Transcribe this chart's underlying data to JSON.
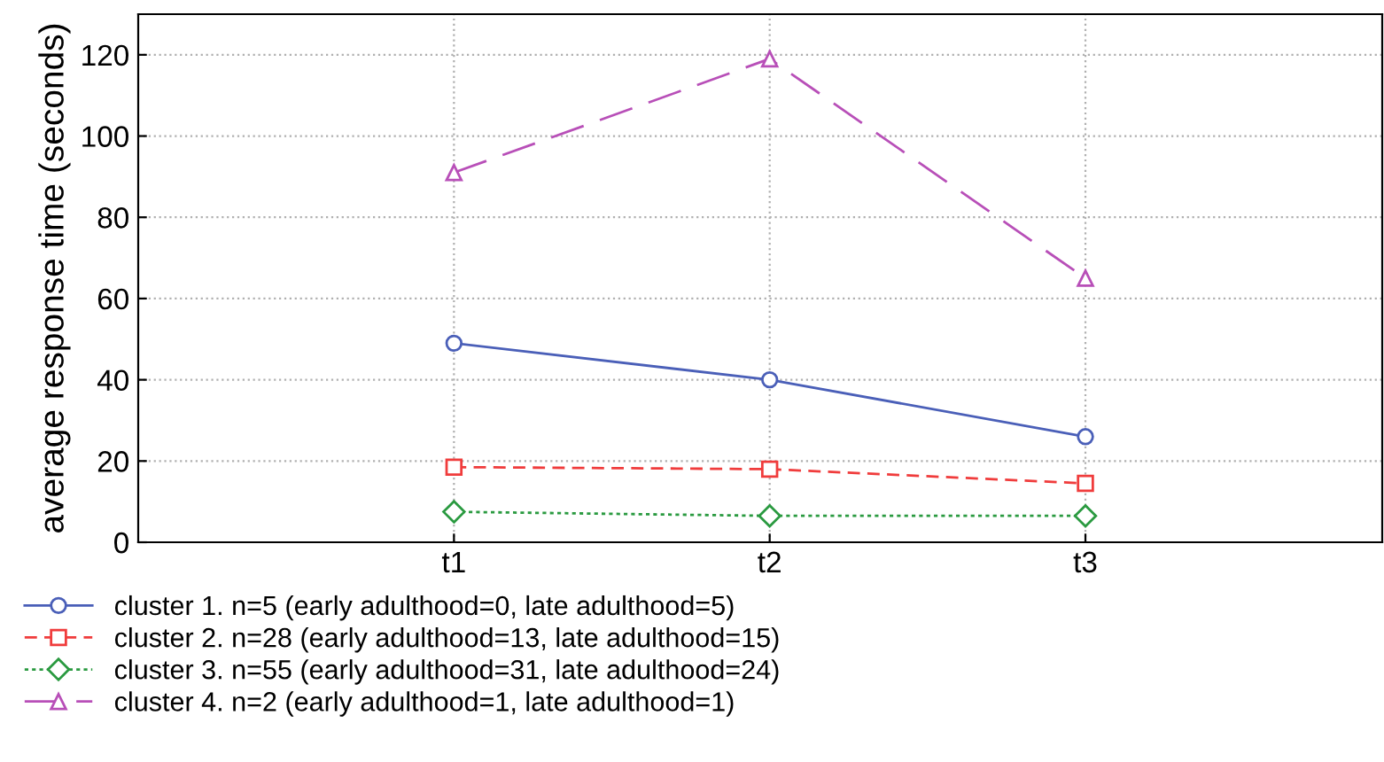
{
  "chart_data": {
    "type": "line",
    "ylabel": "average response time (seconds)",
    "categories": [
      "t1",
      "t2",
      "t3"
    ],
    "series": [
      {
        "name": "cluster 1. n=5 (early adulthood=0, late adulthood=5)",
        "color": "#4a5fb8",
        "values": [
          49,
          40,
          26
        ],
        "marker": "circle",
        "line_style": "solid"
      },
      {
        "name": "cluster 2. n=28 (early adulthood=13, late adulthood=15)",
        "color": "#f03c3c",
        "values": [
          18.5,
          18,
          14.5
        ],
        "marker": "square",
        "line_style": "dashed"
      },
      {
        "name": "cluster 3. n=55 (early adulthood=31, late adulthood=24)",
        "color": "#2a9a40",
        "values": [
          7.5,
          6.5,
          6.5
        ],
        "marker": "diamond",
        "line_style": "dotted"
      },
      {
        "name": "cluster 4. n=2 (early adulthood=1, late adulthood=1)",
        "color": "#b84fb8",
        "values": [
          91,
          119,
          65
        ],
        "marker": "triangle",
        "line_style": "longdash"
      }
    ],
    "ylim": [
      0,
      130
    ],
    "yticks": [
      0,
      20,
      40,
      60,
      80,
      100,
      120
    ],
    "grid": true,
    "legend": "bottom"
  }
}
